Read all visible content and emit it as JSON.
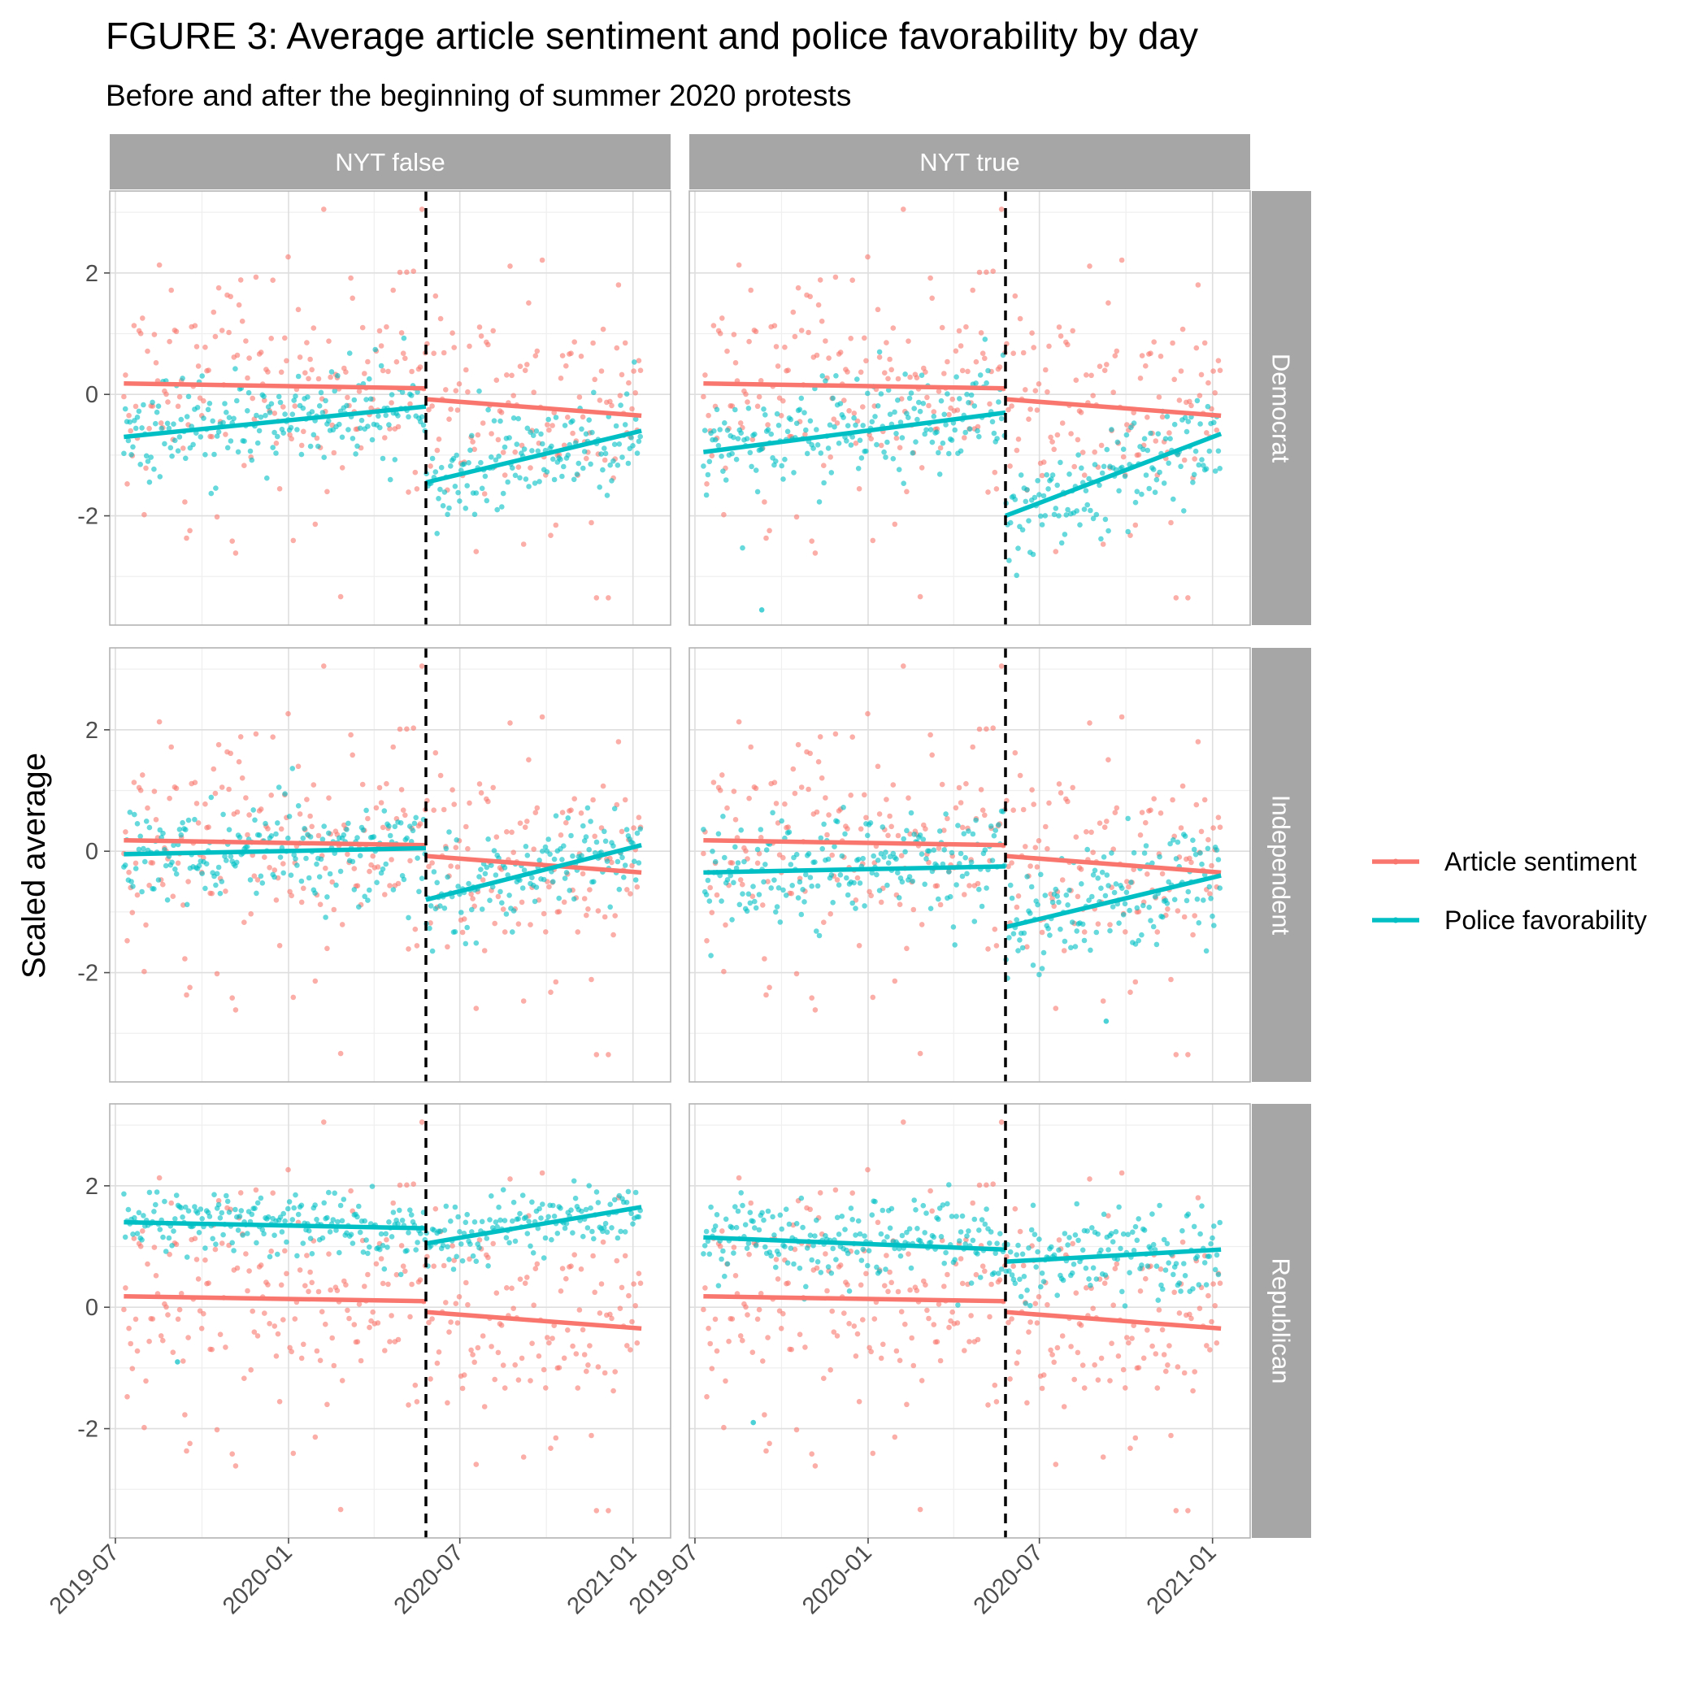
{
  "chart_data": {
    "type": "scatter",
    "title": "FGURE 3: Average article sentiment and police favorability by day",
    "subtitle": "Before and after the beginning of summer 2020 protests",
    "xlabel": "",
    "ylabel": "Scaled average",
    "x_range": [
      "2019-06-25",
      "2021-02-10"
    ],
    "y_range": [
      -3.8,
      3.35
    ],
    "x_ticks": [
      "2019-07",
      "2020-01",
      "2020-07",
      "2021-01"
    ],
    "x_tick_dates": [
      "2019-07-01",
      "2020-01-01",
      "2020-07-01",
      "2021-01-01"
    ],
    "y_ticks": [
      -2,
      0,
      2
    ],
    "y_tick_labels": [
      "-2",
      "0",
      "2"
    ],
    "cutoff_date": "2020-05-26",
    "facet_cols": [
      "NYT false",
      "NYT true"
    ],
    "facet_rows": [
      "Democrat",
      "Independent",
      "Republican"
    ],
    "grid": true,
    "legend_position": "right",
    "legend": [
      {
        "label": "Article sentiment",
        "color": "#F8766D"
      },
      {
        "label": "Police favorability",
        "color": "#00BFC4"
      }
    ],
    "series": [
      "Article sentiment",
      "Police favorability"
    ],
    "series_colors": [
      "#F8766D",
      "#00BFC4"
    ],
    "sentiment_trend": {
      "pre": [
        0.18,
        0.1
      ],
      "post": [
        -0.08,
        -0.35
      ]
    },
    "sentiment_cloud": {
      "pre_mean": 0.1,
      "post_mean": -0.15,
      "sd": 0.85
    },
    "panels": [
      {
        "col": "NYT false",
        "row": "Democrat",
        "police_pre": [
          -0.7,
          -0.2
        ],
        "police_post": [
          -1.45,
          -0.6
        ],
        "police_sd": 0.4,
        "outliers": []
      },
      {
        "col": "NYT true",
        "row": "Democrat",
        "police_pre": [
          -0.95,
          -0.3
        ],
        "police_post": [
          -2.0,
          -0.65
        ],
        "police_sd": 0.45,
        "outliers": [
          {
            "date": "2019-09-10",
            "value": -3.55
          }
        ]
      },
      {
        "col": "NYT false",
        "row": "Independent",
        "police_pre": [
          -0.05,
          0.05
        ],
        "police_post": [
          -0.8,
          0.1
        ],
        "police_sd": 0.4,
        "outliers": []
      },
      {
        "col": "NYT true",
        "row": "Independent",
        "police_pre": [
          -0.35,
          -0.25
        ],
        "police_post": [
          -1.25,
          -0.4
        ],
        "police_sd": 0.45,
        "outliers": [
          {
            "date": "2020-09-10",
            "value": -2.8
          }
        ]
      },
      {
        "col": "NYT false",
        "row": "Republican",
        "police_pre": [
          1.4,
          1.3
        ],
        "police_post": [
          1.05,
          1.65
        ],
        "police_sd": 0.25,
        "outliers": [
          {
            "date": "2019-09-05",
            "value": -0.9
          }
        ]
      },
      {
        "col": "NYT true",
        "row": "Republican",
        "police_pre": [
          1.15,
          0.95
        ],
        "police_post": [
          0.75,
          0.95
        ],
        "police_sd": 0.35,
        "outliers": [
          {
            "date": "2019-09-01",
            "value": -1.9
          }
        ]
      }
    ]
  }
}
